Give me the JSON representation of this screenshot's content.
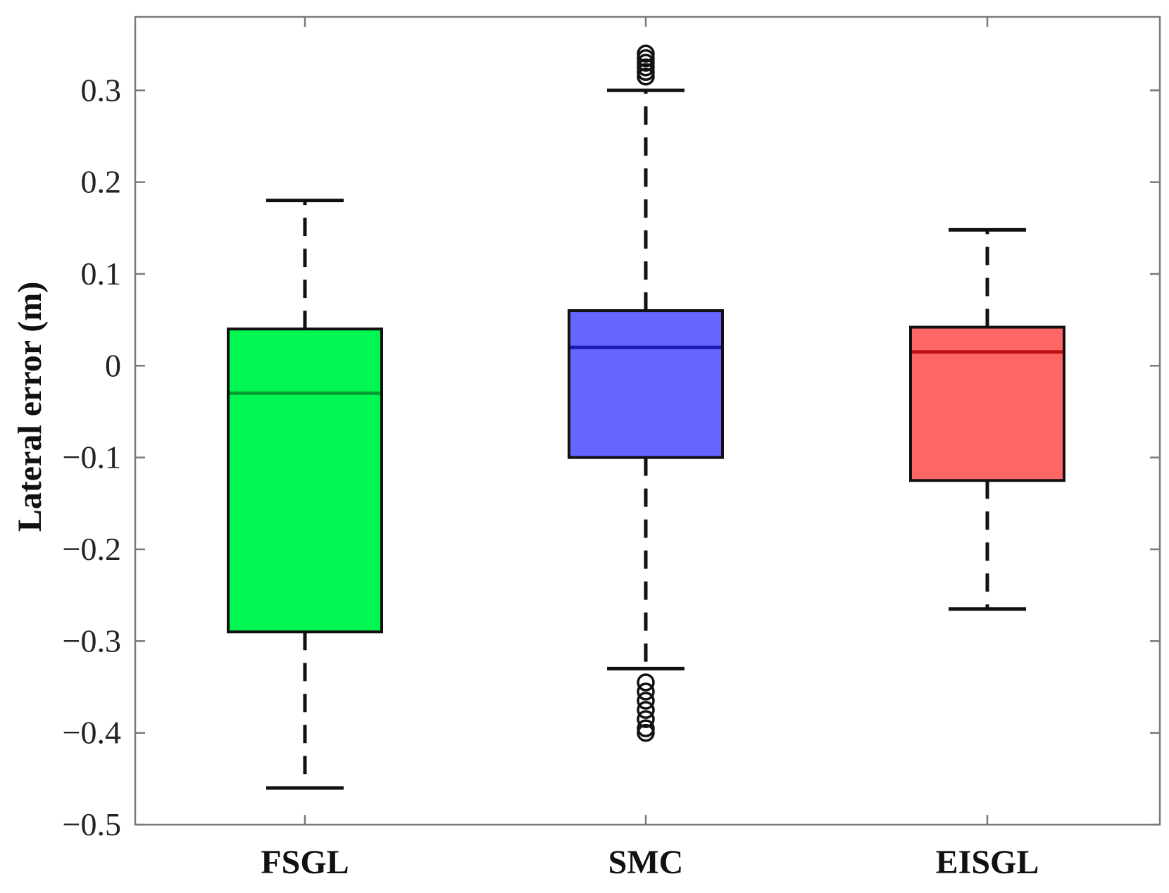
{
  "chart_data": {
    "type": "box",
    "title": "",
    "xlabel": "",
    "ylabel": "Lateral error (m)",
    "ylim": [
      -0.5,
      0.38
    ],
    "yticks": [
      -0.5,
      -0.4,
      -0.3,
      -0.2,
      -0.1,
      0,
      0.1,
      0.2,
      0.3
    ],
    "ytick_labels": [
      "−0.5",
      "−0.4",
      "−0.3",
      "−0.2",
      "−0.1",
      "0",
      "0.1",
      "0.2",
      "0.3"
    ],
    "grid": false,
    "categories": [
      "FSGL",
      "SMC",
      "EISGL"
    ],
    "boxes": [
      {
        "category": "FSGL",
        "whisker_low": -0.46,
        "q1": -0.29,
        "median": -0.03,
        "q3": 0.04,
        "whisker_high": 0.18,
        "outliers": [],
        "color": "#00f751",
        "median_color": "#00a030"
      },
      {
        "category": "SMC",
        "whisker_low": -0.33,
        "q1": -0.1,
        "median": 0.02,
        "q3": 0.06,
        "whisker_high": 0.3,
        "outliers": [
          0.34,
          0.335,
          0.33,
          0.325,
          0.32,
          0.315,
          -0.345,
          -0.355,
          -0.365,
          -0.375,
          -0.385,
          -0.395,
          -0.4
        ],
        "color": "#6666ff",
        "median_color": "#1a1ab0"
      },
      {
        "category": "EISGL",
        "whisker_low": -0.265,
        "q1": -0.125,
        "median": 0.015,
        "q3": 0.042,
        "whisker_high": 0.148,
        "outliers": [],
        "color": "#ff6666",
        "median_color": "#c01010"
      }
    ]
  }
}
